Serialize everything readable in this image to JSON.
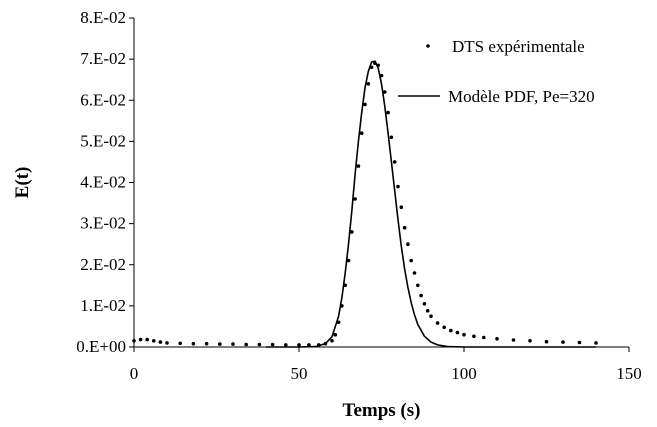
{
  "chart_data": {
    "type": "scatter",
    "xlabel": "Temps (s)",
    "ylabel": "E(t)",
    "xlim": [
      0,
      150
    ],
    "ylim": [
      0,
      0.08
    ],
    "x_ticks": [
      0,
      50,
      100,
      150
    ],
    "x_tick_labels": [
      "0",
      "50",
      "100",
      "150"
    ],
    "y_ticks": [
      0,
      0.01,
      0.02,
      0.03,
      0.04,
      0.05,
      0.06,
      0.07,
      0.08
    ],
    "y_tick_labels": [
      "0.E+00",
      "1.E-02",
      "2.E-02",
      "3.E-02",
      "4.E-02",
      "5.E-02",
      "6.E-02",
      "7.E-02",
      "8.E-02"
    ],
    "grid": false,
    "legend_position": "top-right",
    "colors": {
      "series": "#000000"
    },
    "series": [
      {
        "name": "DTS expérimentale",
        "style": "points",
        "x": [
          0,
          2,
          4,
          6,
          8,
          10,
          14,
          18,
          22,
          26,
          30,
          34,
          38,
          42,
          46,
          50,
          53,
          56,
          58,
          60,
          61,
          62,
          63,
          64,
          65,
          66,
          67,
          68,
          69,
          70,
          71,
          72,
          73,
          74,
          75,
          76,
          77,
          78,
          79,
          80,
          81,
          82,
          83,
          84,
          85,
          86,
          87,
          88,
          89,
          90,
          92,
          94,
          96,
          98,
          100,
          103,
          106,
          110,
          115,
          120,
          125,
          130,
          135,
          140
        ],
        "y": [
          0.0015,
          0.0018,
          0.0018,
          0.0015,
          0.0012,
          0.001,
          0.0009,
          0.0008,
          0.0008,
          0.0007,
          0.0007,
          0.0006,
          0.0006,
          0.0006,
          0.0005,
          0.0005,
          0.0005,
          0.0005,
          0.0008,
          0.0015,
          0.003,
          0.006,
          0.01,
          0.015,
          0.021,
          0.028,
          0.036,
          0.044,
          0.052,
          0.059,
          0.064,
          0.068,
          0.069,
          0.0685,
          0.066,
          0.062,
          0.057,
          0.051,
          0.045,
          0.039,
          0.034,
          0.029,
          0.025,
          0.021,
          0.018,
          0.015,
          0.0125,
          0.0105,
          0.0088,
          0.0075,
          0.0058,
          0.0048,
          0.004,
          0.0035,
          0.003,
          0.0026,
          0.0023,
          0.002,
          0.0017,
          0.0015,
          0.0013,
          0.0012,
          0.0011,
          0.001
        ]
      },
      {
        "name": "Modèle PDF, Pe=320",
        "style": "line",
        "x": [
          40,
          50,
          55,
          58,
          60,
          62,
          63,
          64,
          65,
          66,
          67,
          68,
          69,
          70,
          71,
          72,
          73,
          74,
          75,
          76,
          77,
          78,
          79,
          80,
          81,
          82,
          83,
          84,
          85,
          86,
          88,
          90,
          92,
          95,
          100,
          110,
          120,
          130,
          140
        ],
        "y": [
          0,
          0,
          0.0001,
          0.0008,
          0.0025,
          0.0075,
          0.012,
          0.018,
          0.025,
          0.033,
          0.042,
          0.05,
          0.057,
          0.063,
          0.067,
          0.0693,
          0.0695,
          0.0678,
          0.064,
          0.0585,
          0.052,
          0.045,
          0.038,
          0.031,
          0.0245,
          0.019,
          0.0145,
          0.0108,
          0.0078,
          0.0055,
          0.0026,
          0.0012,
          0.0005,
          0.0001,
          0,
          0,
          0,
          0,
          0
        ]
      }
    ]
  }
}
